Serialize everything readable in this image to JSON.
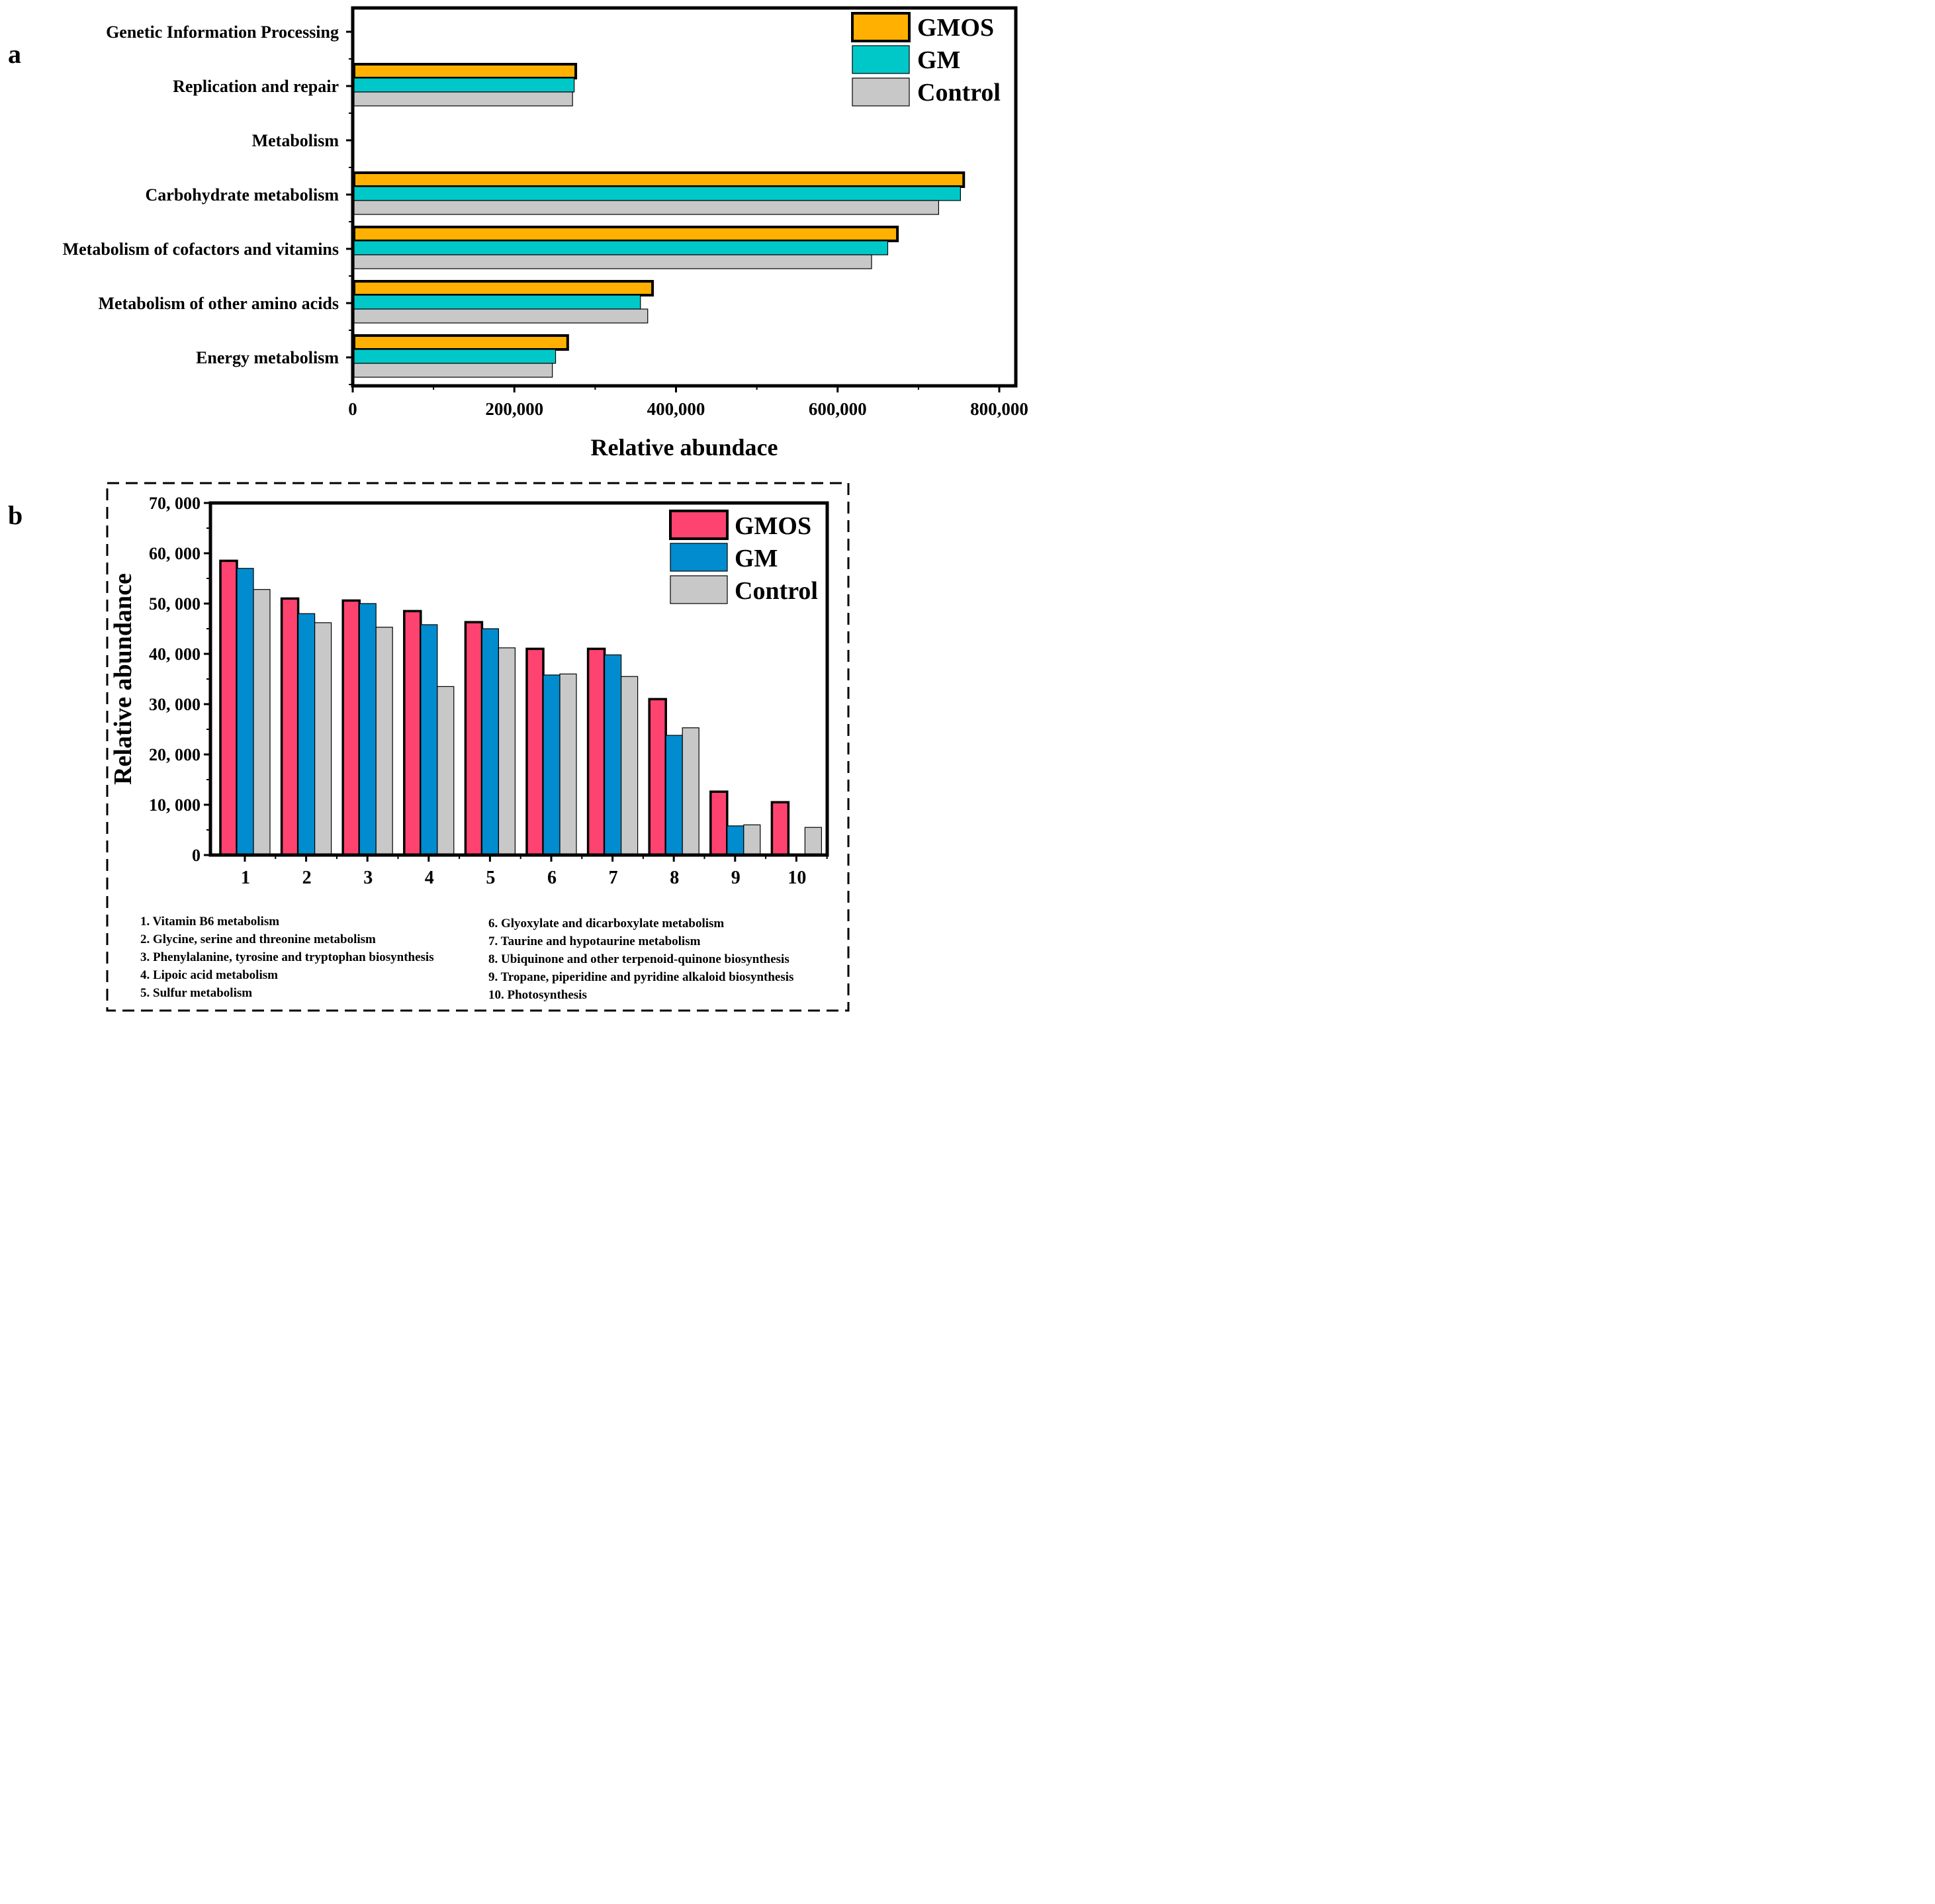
{
  "chart_data": [
    {
      "panel_label": "a",
      "type": "bar",
      "orientation": "horizontal",
      "title": "",
      "xlabel": "Relative abundace",
      "ylabel": "",
      "xlim": [
        0,
        800000
      ],
      "x_ticks": [
        "0",
        "200,000",
        "400,000",
        "600,000",
        "800,000"
      ],
      "categories": [
        "Genetic Information Processing",
        "Replication and repair",
        "Metabolism",
        "Carbohydrate metabolism",
        "Metabolism of cofactors and vitamins",
        "Metabolism of other amino acids",
        "Energy metabolism"
      ],
      "series": [
        {
          "name": "GMOS",
          "color": "#FFB000",
          "values": [
            null,
            276000,
            null,
            756000,
            674000,
            371000,
            266000
          ]
        },
        {
          "name": "GM",
          "color": "#00C8C8",
          "values": [
            null,
            274000,
            null,
            752000,
            662000,
            356000,
            251000
          ]
        },
        {
          "name": "Control",
          "color": "#C8C8C8",
          "values": [
            null,
            272000,
            null,
            725000,
            642000,
            365000,
            247000
          ]
        }
      ],
      "legend": "top-right",
      "grid": false
    },
    {
      "panel_label": "b",
      "type": "bar",
      "orientation": "vertical",
      "title": "",
      "xlabel": "",
      "ylabel": "Relative abundance",
      "ylim": [
        0,
        70000
      ],
      "y_ticks": [
        "0",
        "10, 000",
        "20, 000",
        "30, 000",
        "40, 000",
        "50, 000",
        "60, 000",
        "70, 000"
      ],
      "categories": [
        "1",
        "2",
        "3",
        "4",
        "5",
        "6",
        "7",
        "8",
        "9",
        "10"
      ],
      "series": [
        {
          "name": "GMOS",
          "color": "#FF4370",
          "values": [
            58500,
            51000,
            50600,
            48500,
            46300,
            41000,
            41000,
            31000,
            12600,
            10500
          ]
        },
        {
          "name": "GM",
          "color": "#008CCE",
          "values": [
            57000,
            48000,
            50000,
            45800,
            45000,
            35800,
            39800,
            23800,
            5800,
            0
          ]
        },
        {
          "name": "Control",
          "color": "#C8C8C8",
          "values": [
            52800,
            46200,
            45300,
            33500,
            41200,
            36000,
            35500,
            25300,
            6000,
            5500
          ]
        }
      ],
      "legend": "top-right",
      "grid": false,
      "pathway_key_left": [
        "1. Vitamin B6 metabolism",
        "2. Glycine, serine and threonine metabolism",
        "3. Phenylalanine, tyrosine and tryptophan biosynthesis",
        "4. Lipoic acid metabolism",
        "5. Sulfur metabolism"
      ],
      "pathway_key_right": [
        "6. Glyoxylate and dicarboxylate metabolism",
        "7. Taurine and hypotaurine metabolism",
        "8. Ubiquinone and other terpenoid-quinone biosynthesis",
        "9. Tropane, piperidine and pyridine alkaloid biosynthesis",
        "10. Photosynthesis"
      ]
    }
  ]
}
